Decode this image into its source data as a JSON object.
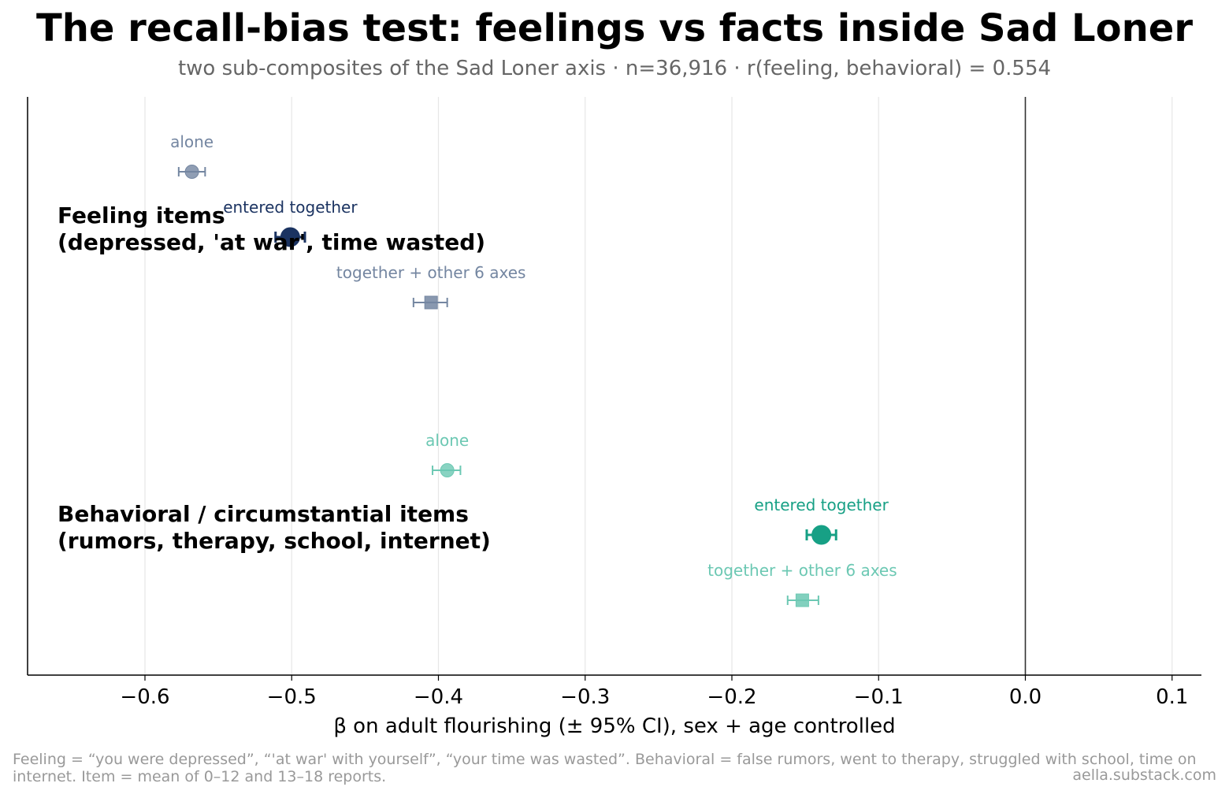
{
  "title": "The recall-bias test: feelings vs facts inside Sad Loner",
  "subtitle": "two sub-composites of the Sad Loner axis · n=36,916 · r(feeling, behavioral) = 0.554",
  "footnote": "Feeling = “you were depressed”, “'at war' with yourself”, “your time was wasted”. Behavioral = false rumors, went to therapy, struggled with school, time on internet. Item = mean of 0–12 and 13–18 reports.",
  "source": "aella.substack.com",
  "colors": {
    "feeling": "#1b3361",
    "feeling_light": "#7486a1",
    "behavioral": "#17a085",
    "behavioral_light": "#6cc8b3"
  },
  "chart_data": {
    "type": "scatter",
    "xlabel": "β on adult flourishing (± 95% CI), sex + age controlled",
    "xlim": [
      -0.68,
      0.12
    ],
    "xticks": [
      -0.6,
      -0.5,
      -0.4,
      -0.3,
      -0.2,
      -0.1,
      0.0,
      0.1
    ],
    "xtick_labels": [
      "−0.6",
      "−0.5",
      "−0.4",
      "−0.3",
      "−0.2",
      "−0.1",
      "0.0",
      "0.1"
    ],
    "grid": "vertical",
    "groups": [
      {
        "label_line1": "Feeling items",
        "label_line2": "(depressed, 'at war', time wasted)",
        "color_key": "feeling",
        "estimates": [
          {
            "label": "alone",
            "beta": -0.568,
            "ci_low": -0.577,
            "ci_high": -0.559,
            "marker": "circle",
            "emphasis": false
          },
          {
            "label": "entered together",
            "beta": -0.501,
            "ci_low": -0.511,
            "ci_high": -0.491,
            "marker": "circle",
            "emphasis": true
          },
          {
            "label": "together + other 6 axes",
            "beta": -0.405,
            "ci_low": -0.417,
            "ci_high": -0.394,
            "marker": "square",
            "emphasis": false
          }
        ]
      },
      {
        "label_line1": "Behavioral / circumstantial items",
        "label_line2": "(rumors, therapy, school, internet)",
        "color_key": "behavioral",
        "estimates": [
          {
            "label": "alone",
            "beta": -0.394,
            "ci_low": -0.404,
            "ci_high": -0.385,
            "marker": "circle",
            "emphasis": false
          },
          {
            "label": "entered together",
            "beta": -0.139,
            "ci_low": -0.149,
            "ci_high": -0.129,
            "marker": "circle",
            "emphasis": true
          },
          {
            "label": "together + other 6 axes",
            "beta": -0.152,
            "ci_low": -0.162,
            "ci_high": -0.141,
            "marker": "square",
            "emphasis": false
          }
        ]
      }
    ]
  }
}
